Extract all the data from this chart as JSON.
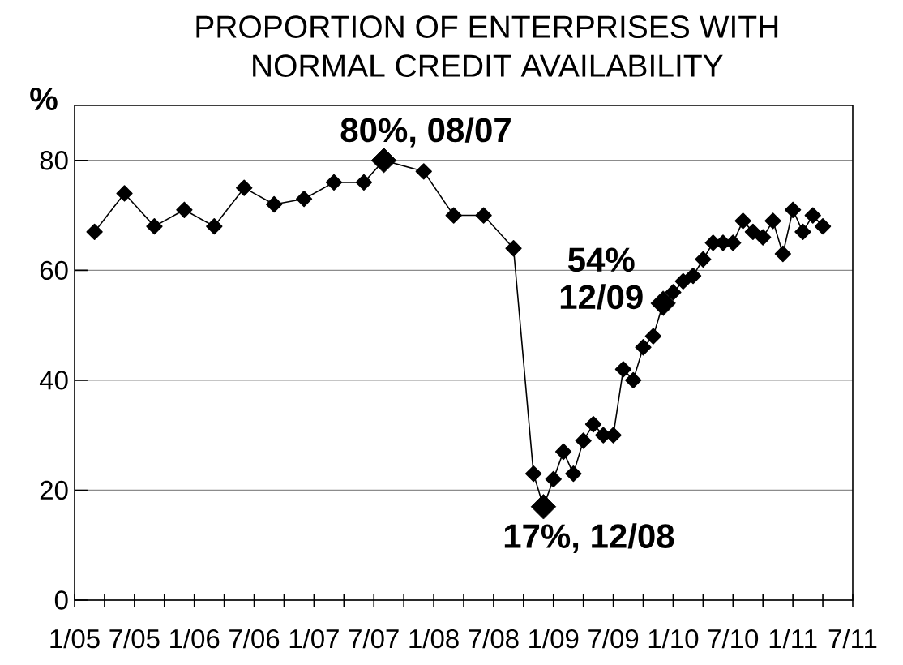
{
  "chart_data": {
    "type": "line",
    "title": "PROPORTION OF ENTERPRISES WITH NORMAL CREDIT AVAILABILITY",
    "ylabel": "%",
    "annotations": [
      {
        "text": "80%, 08/07",
        "x": "2007-08",
        "y": 80
      },
      {
        "text": "17%, 12/08",
        "x": "2008-12",
        "y": 17
      },
      {
        "text": "54% 12/09",
        "x": "2009-12",
        "y": 54
      }
    ],
    "series": [
      {
        "color": "#000000",
        "x": [
          "2005-03",
          "2005-06",
          "2005-09",
          "2005-12",
          "2006-03",
          "2006-06",
          "2006-09",
          "2006-12",
          "2007-03",
          "2007-06",
          "2007-08",
          "2007-12",
          "2008-03",
          "2008-06",
          "2008-09",
          "2008-11",
          "2008-12",
          "2009-01",
          "2009-02",
          "2009-03",
          "2009-04",
          "2009-05",
          "2009-06",
          "2009-07",
          "2009-08",
          "2009-09",
          "2009-10",
          "2009-11",
          "2009-12",
          "2010-01",
          "2010-02",
          "2010-03",
          "2010-04",
          "2010-05",
          "2010-06",
          "2010-07",
          "2010-08",
          "2010-09",
          "2010-10",
          "2010-11",
          "2010-12",
          "2011-01",
          "2011-02",
          "2011-03",
          "2011-04"
        ],
        "values": [
          67,
          74,
          68,
          71,
          68,
          75,
          72,
          73,
          76,
          76,
          80,
          78,
          70,
          70,
          64,
          23,
          17,
          22,
          27,
          23,
          29,
          32,
          30,
          30,
          42,
          40,
          46,
          48,
          54,
          56,
          58,
          59,
          62,
          65,
          65,
          65,
          69,
          67,
          66,
          69,
          63,
          71,
          67,
          70,
          68
        ]
      },
      {
        "type": "scatter",
        "color": "#000000",
        "x": [
          "2007-08",
          "2008-12",
          "2009-12"
        ],
        "values": [
          80,
          17,
          54
        ]
      }
    ],
    "xlim": [
      "2005-01",
      "2011-07"
    ],
    "xticks": [
      {
        "value": "2005-01",
        "label": "1/05"
      },
      {
        "value": "2005-04",
        "label": null
      },
      {
        "value": "2005-07",
        "label": "7/05"
      },
      {
        "value": "2005-10",
        "label": null
      },
      {
        "value": "2006-01",
        "label": "1/06"
      },
      {
        "value": "2006-04",
        "label": null
      },
      {
        "value": "2006-07",
        "label": "7/06"
      },
      {
        "value": "2006-10",
        "label": null
      },
      {
        "value": "2007-01",
        "label": "1/07"
      },
      {
        "value": "2007-04",
        "label": null
      },
      {
        "value": "2007-07",
        "label": "7/07"
      },
      {
        "value": "2007-10",
        "label": null
      },
      {
        "value": "2008-01",
        "label": "1/08"
      },
      {
        "value": "2008-04",
        "label": null
      },
      {
        "value": "2008-07",
        "label": "7/08"
      },
      {
        "value": "2008-10",
        "label": null
      },
      {
        "value": "2009-01",
        "label": "1/09"
      },
      {
        "value": "2009-04",
        "label": null
      },
      {
        "value": "2009-07",
        "label": "7/09"
      },
      {
        "value": "2009-10",
        "label": null
      },
      {
        "value": "2010-01",
        "label": "1/10"
      },
      {
        "value": "2010-04",
        "label": null
      },
      {
        "value": "2010-07",
        "label": "7/10"
      },
      {
        "value": "2010-10",
        "label": null
      },
      {
        "value": "2011-01",
        "label": "1/11"
      },
      {
        "value": "2011-04",
        "label": null
      },
      {
        "value": "2011-07",
        "label": "7/11"
      }
    ],
    "ylim": [
      0,
      90
    ],
    "yticks": [
      0,
      20,
      40,
      60,
      80
    ],
    "grid": "y",
    "marker": "diamond"
  }
}
